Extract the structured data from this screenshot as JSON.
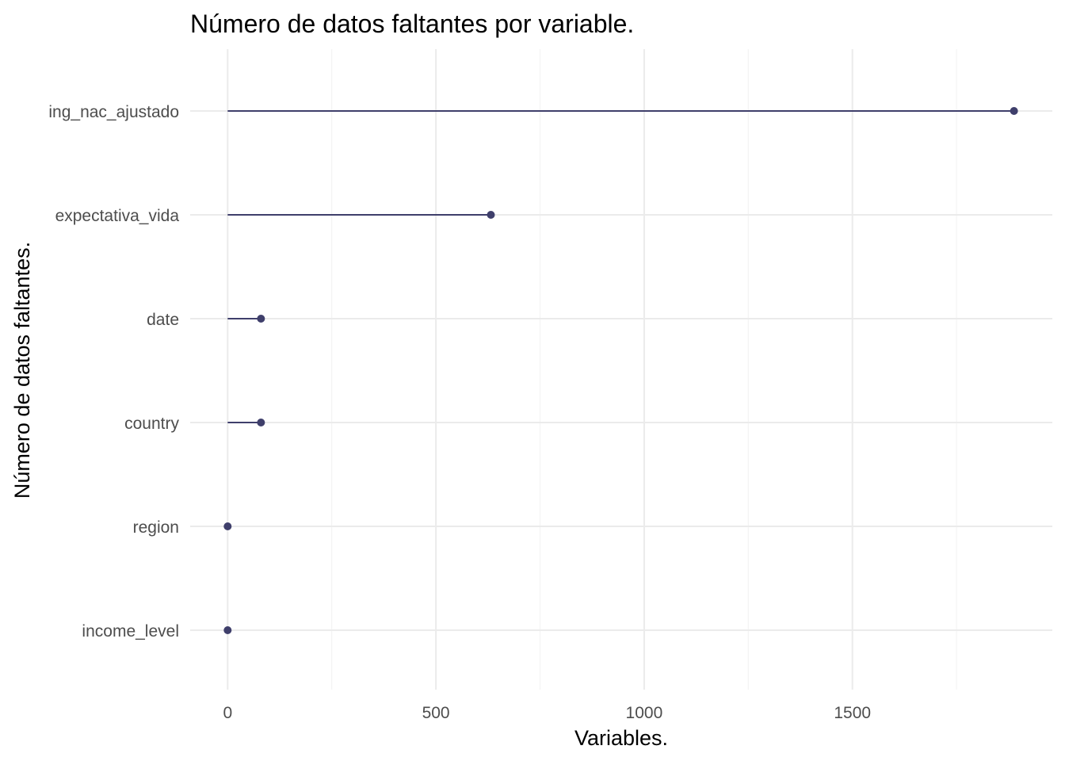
{
  "chart_data": {
    "type": "lollipop",
    "title": "Número de datos faltantes por variable.",
    "xlabel": "Variables.",
    "ylabel": "Número de datos faltantes.",
    "categories": [
      "income_level",
      "region",
      "country",
      "date",
      "expectativa_vida",
      "ing_nac_ajustado"
    ],
    "values": [
      0,
      0,
      80,
      80,
      632,
      1888
    ],
    "xlim": [
      -90,
      1980
    ],
    "x_ticks": [
      0,
      500,
      1000,
      1500
    ],
    "x_tick_labels": [
      "0",
      "500",
      "1000",
      "1500"
    ],
    "grid": true,
    "legend": "none",
    "colors": {
      "point": "#3f3f6b",
      "segment": "#3f3f6b",
      "grid_major": "#ebebeb",
      "grid_minor": "#f2f2f2"
    }
  }
}
